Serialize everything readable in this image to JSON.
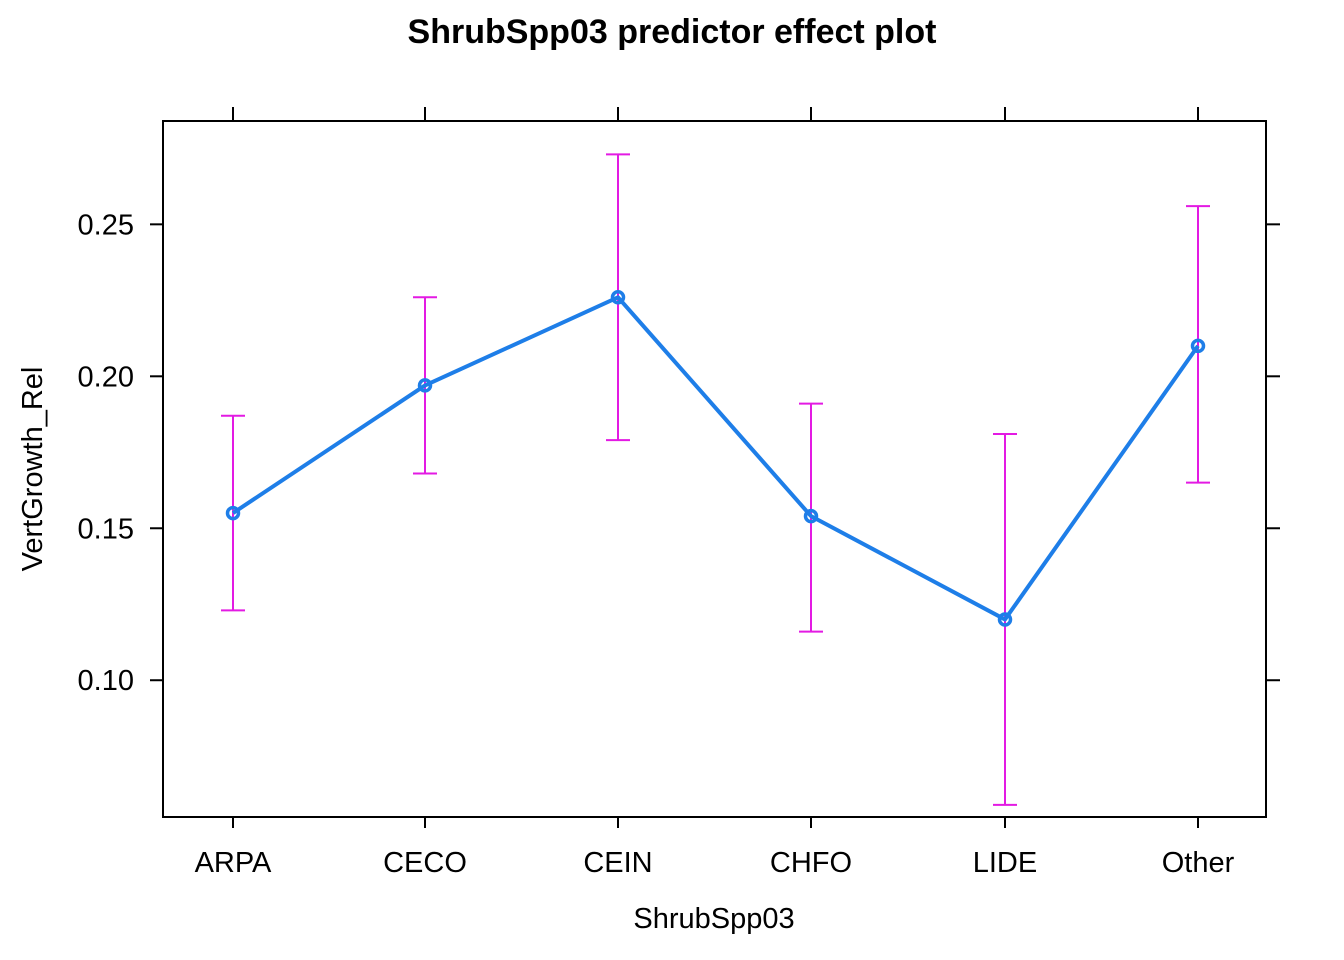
{
  "chart_data": {
    "type": "line",
    "title": "ShrubSpp03 predictor effect plot",
    "xlabel": "ShrubSpp03",
    "ylabel": "VertGrowth_Rel",
    "categories": [
      "ARPA",
      "CECO",
      "CEIN",
      "CHFO",
      "LIDE",
      "Other"
    ],
    "series": [
      {
        "values": [
          0.155,
          0.197,
          0.226,
          0.154,
          0.12,
          0.21
        ],
        "lower": [
          0.123,
          0.168,
          0.179,
          0.116,
          0.059,
          0.165
        ],
        "upper": [
          0.187,
          0.226,
          0.273,
          0.191,
          0.181,
          0.256
        ]
      }
    ],
    "yticks": [
      0.1,
      0.15,
      0.2,
      0.25
    ],
    "ytick_labels": [
      "0.10",
      "0.15",
      "0.20",
      "0.25"
    ],
    "ylim": [
      0.055,
      0.284
    ],
    "grid": false,
    "legend": "none",
    "colors": {
      "line": "#1e7ee8",
      "error_bar": "#e31ae3",
      "frame": "#000000"
    }
  }
}
